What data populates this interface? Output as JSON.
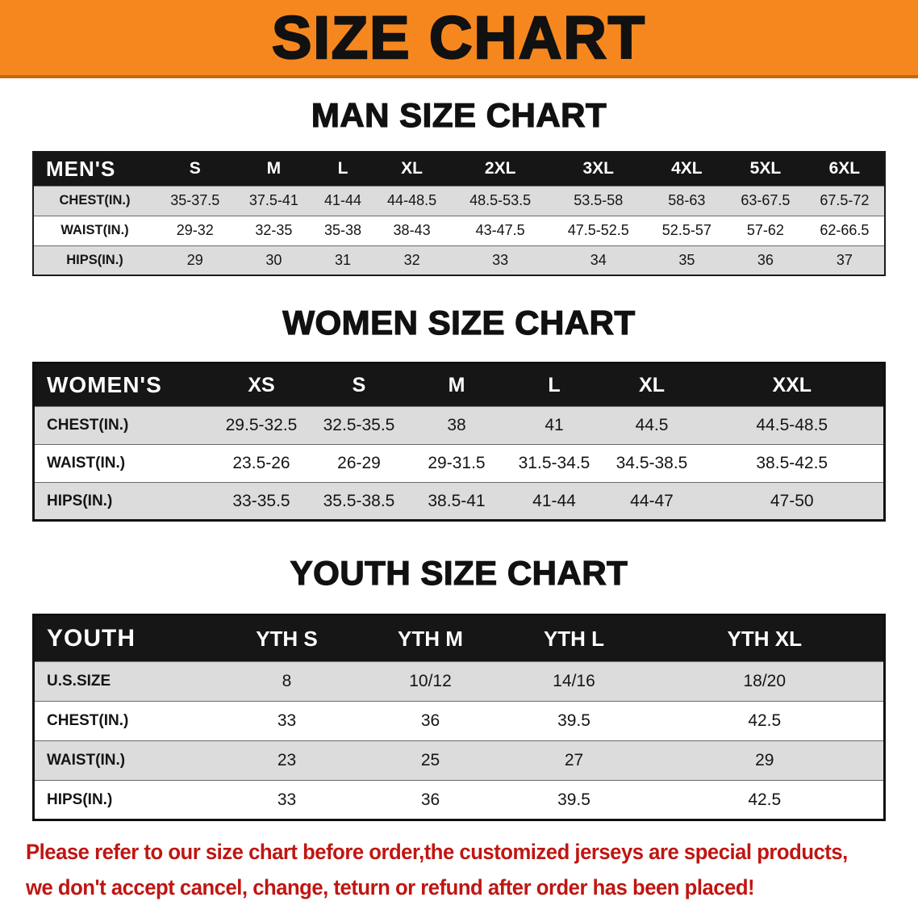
{
  "banner": {
    "title": "SIZE CHART"
  },
  "chart_data": [
    {
      "type": "table",
      "title": "MAN SIZE CHART",
      "header": [
        "MEN'S",
        "S",
        "M",
        "L",
        "XL",
        "2XL",
        "3XL",
        "4XL",
        "5XL",
        "6XL"
      ],
      "rows": [
        [
          "CHEST(IN.)",
          "35-37.5",
          "37.5-41",
          "41-44",
          "44-48.5",
          "48.5-53.5",
          "53.5-58",
          "58-63",
          "63-67.5",
          "67.5-72"
        ],
        [
          "WAIST(IN.)",
          "29-32",
          "32-35",
          "35-38",
          "38-43",
          "43-47.5",
          "47.5-52.5",
          "52.5-57",
          "57-62",
          "62-66.5"
        ],
        [
          "HIPS(IN.)",
          "29",
          "30",
          "31",
          "32",
          "33",
          "34",
          "35",
          "36",
          "37"
        ]
      ]
    },
    {
      "type": "table",
      "title": "WOMEN SIZE CHART",
      "header": [
        "WOMEN'S",
        "XS",
        "S",
        "M",
        "L",
        "XL",
        "XXL"
      ],
      "rows": [
        [
          "CHEST(IN.)",
          "29.5-32.5",
          "32.5-35.5",
          "38",
          "41",
          "44.5",
          "44.5-48.5"
        ],
        [
          "WAIST(IN.)",
          "23.5-26",
          "26-29",
          "29-31.5",
          "31.5-34.5",
          "34.5-38.5",
          "38.5-42.5"
        ],
        [
          "HIPS(IN.)",
          "33-35.5",
          "35.5-38.5",
          "38.5-41",
          "41-44",
          "44-47",
          "47-50"
        ]
      ]
    },
    {
      "type": "table",
      "title": "YOUTH SIZE CHART",
      "header": [
        "YOUTH",
        "YTH S",
        "YTH M",
        "YTH L",
        "YTH XL"
      ],
      "rows": [
        [
          "U.S.SIZE",
          "8",
          "10/12",
          "14/16",
          "18/20"
        ],
        [
          "CHEST(IN.)",
          "33",
          "36",
          "39.5",
          "42.5"
        ],
        [
          "WAIST(IN.)",
          "23",
          "25",
          "27",
          "29"
        ],
        [
          "HIPS(IN.)",
          "33",
          "36",
          "39.5",
          "42.5"
        ]
      ]
    }
  ],
  "disclaimer": {
    "line1": "Please refer to our size chart before order,the customized jerseys are special products,",
    "line2": "we don't accept cancel, change, teturn or refund after order has been placed!"
  },
  "colors": {
    "banner_bg": "#f6871f",
    "banner_edge": "#c26a0c",
    "table_header_bg": "#161616",
    "table_header_text": "#ffffff",
    "row_shaded": "#dcdcdc",
    "row_plain": "#ffffff",
    "heading_text": "#111111",
    "disclaimer_text": "#bf1612"
  }
}
